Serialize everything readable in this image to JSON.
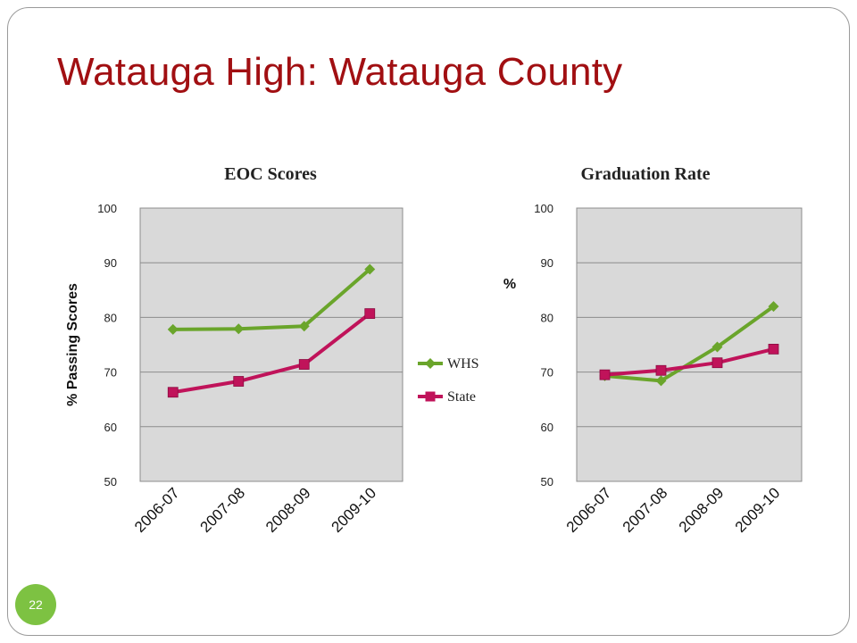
{
  "slide": {
    "title": "Watauga High:  Watauga County",
    "page_number": "22"
  },
  "colors": {
    "title": "#a10f12",
    "whs": "#6aa52b",
    "state": "#c0135a",
    "plot_bg": "#d9d9d9",
    "badge": "#7dc242"
  },
  "chart_data": [
    {
      "type": "line",
      "title": "EOC Scores",
      "xlabel": "",
      "ylabel": "% Passing Scores",
      "categories": [
        "2006-07",
        "2007-08",
        "2008-09",
        "2009-10"
      ],
      "ylim": [
        50,
        100
      ],
      "yticks": [
        "50",
        "60",
        "70",
        "80",
        "90",
        "100"
      ],
      "grid": true,
      "legend": "right",
      "series": [
        {
          "name": "WHS",
          "values": [
            77.8,
            77.9,
            78.4,
            88.8
          ],
          "marker": "diamond",
          "color": "#6aa52b"
        },
        {
          "name": "State",
          "values": [
            66.3,
            68.3,
            71.4,
            80.7
          ],
          "marker": "square",
          "color": "#c0135a"
        }
      ]
    },
    {
      "type": "line",
      "title": "Graduation Rate",
      "xlabel": "",
      "ylabel": "%",
      "categories": [
        "2006-07",
        "2007-08",
        "2008-09",
        "2009-10"
      ],
      "ylim": [
        50,
        100
      ],
      "yticks": [
        "50",
        "60",
        "70",
        "80",
        "90",
        "100"
      ],
      "grid": true,
      "legend": "none",
      "series": [
        {
          "name": "WHS",
          "values": [
            69.3,
            68.4,
            74.6,
            82.0
          ],
          "marker": "diamond",
          "color": "#6aa52b"
        },
        {
          "name": "State",
          "values": [
            69.5,
            70.3,
            71.7,
            74.2
          ],
          "marker": "square",
          "color": "#c0135a"
        }
      ]
    }
  ]
}
